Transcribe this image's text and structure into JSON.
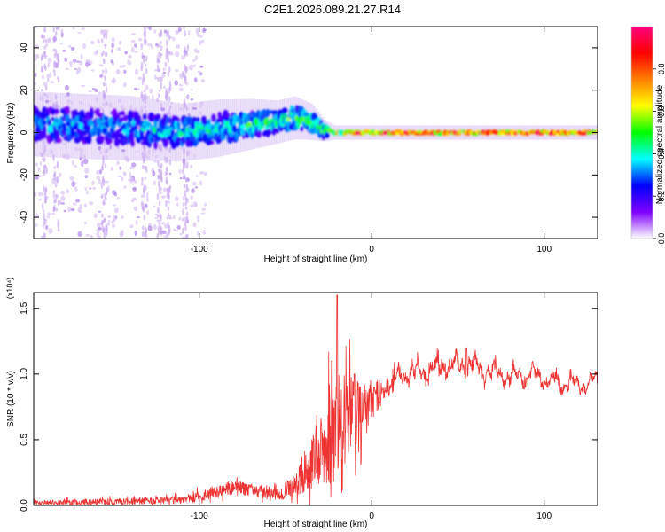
{
  "title": "C2E1.2026.089.21.27.R14",
  "chart_data": [
    {
      "type": "heatmap",
      "name": "spectrogram",
      "xlabel": "Height of straight line (km)",
      "ylabel": "Frequency (Hz)",
      "xlim": [
        -196,
        131
      ],
      "ylim": [
        -50,
        50
      ],
      "x_ticks": [
        -100,
        0,
        100
      ],
      "x_tick_labels": [
        "-100",
        "0",
        "100"
      ],
      "y_ticks": [
        -40,
        -20,
        0,
        20,
        40
      ],
      "y_tick_labels": [
        "-40",
        "-20",
        "0",
        "20",
        "40"
      ],
      "colorbar": {
        "label": "Normalized spectral amplitude",
        "range": [
          0,
          1
        ],
        "ticks": [
          0.0,
          0.2,
          0.4,
          0.6,
          0.8
        ],
        "tick_labels": [
          "0.0",
          "0.2",
          "0.4",
          "0.6",
          "0.8"
        ],
        "colors": [
          "#ffffff",
          "#7f00ff",
          "#0000ff",
          "#00ffff",
          "#00ff00",
          "#ffff00",
          "#ff7f00",
          "#ff0000",
          "#ff0080"
        ]
      },
      "ridge": {
        "x": [
          -196,
          -170,
          -140,
          -110,
          -90,
          -70,
          -55,
          -45,
          -35,
          -28,
          -22,
          -10,
          0,
          20,
          60,
          100,
          131
        ],
        "freq": [
          4,
          3,
          2,
          0,
          2,
          4,
          5,
          7,
          5,
          1,
          0,
          0,
          0,
          0,
          0,
          0,
          0
        ],
        "spread": [
          9,
          9,
          9,
          8,
          8,
          7,
          6,
          6,
          5,
          3,
          2,
          2,
          2,
          2,
          2,
          2,
          2
        ],
        "peak_amplitude": [
          0.4,
          0.4,
          0.4,
          0.45,
          0.45,
          0.5,
          0.5,
          0.55,
          0.55,
          0.6,
          0.7,
          0.85,
          0.9,
          0.95,
          0.95,
          0.95,
          0.95
        ]
      },
      "noise_columns_km": [
        -190,
        -183,
        -155,
        -132,
        -123,
        -118,
        -108
      ]
    },
    {
      "type": "line",
      "name": "snr",
      "xlabel": "Height of straight line (km)",
      "ylabel": "SNR (10 * v/v)",
      "scale_label": "(x10⁴)",
      "xlim": [
        -196,
        131
      ],
      "ylim": [
        0,
        1.62
      ],
      "x_ticks": [
        -100,
        0,
        100
      ],
      "x_tick_labels": [
        "-100",
        "0",
        "100"
      ],
      "y_ticks": [
        0.0,
        0.5,
        1.0,
        1.5
      ],
      "y_tick_labels": [
        "0.0",
        "0.5",
        "1.0",
        "1.5"
      ],
      "color": "#ee3333",
      "envelope": {
        "x": [
          -196,
          -150,
          -110,
          -90,
          -80,
          -70,
          -55,
          -45,
          -35,
          -28,
          -22,
          -18,
          -12,
          -5,
          0,
          10,
          20,
          30,
          40,
          55,
          70,
          80,
          90,
          100,
          110,
          120,
          131
        ],
        "mean": [
          0.02,
          0.03,
          0.04,
          0.1,
          0.14,
          0.12,
          0.08,
          0.15,
          0.3,
          0.45,
          0.6,
          0.65,
          0.7,
          0.75,
          0.8,
          0.92,
          1.0,
          1.02,
          1.05,
          1.08,
          1.02,
          0.98,
          1.0,
          0.97,
          0.93,
          0.92,
          0.95
        ],
        "noise": [
          0.02,
          0.025,
          0.03,
          0.05,
          0.06,
          0.05,
          0.05,
          0.08,
          0.2,
          0.3,
          0.45,
          0.4,
          0.3,
          0.2,
          0.15,
          0.07,
          0.05,
          0.04,
          0.05,
          0.05,
          0.04,
          0.04,
          0.04,
          0.04,
          0.04,
          0.04,
          0.03
        ]
      },
      "peaks": [
        {
          "x": -20,
          "y": 1.6
        },
        {
          "x": -23,
          "y": 1.1
        },
        {
          "x": -10,
          "y": 1.0
        },
        {
          "x": 55,
          "y": 1.2
        }
      ]
    }
  ]
}
